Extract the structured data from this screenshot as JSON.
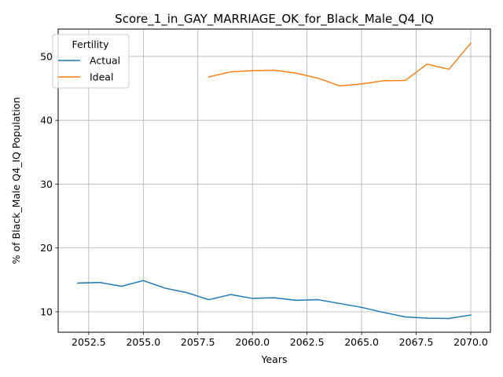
{
  "chart_data": {
    "type": "line",
    "title": "Score_1_in_GAY_MARRIAGE_OK_for_Black_Male_Q4_IQ",
    "xlabel": "Years",
    "ylabel": "% of Black_Male Q4_IQ Population",
    "xlim": [
      2051.1,
      2070.9
    ],
    "ylim": [
      6.8,
      54.3
    ],
    "x_ticks": [
      2052.5,
      2055.0,
      2057.5,
      2060.0,
      2062.5,
      2065.0,
      2067.5,
      2070.0
    ],
    "x_tick_labels": [
      "2052.5",
      "2055.0",
      "2057.5",
      "2060.0",
      "2062.5",
      "2065.0",
      "2067.5",
      "2070.0"
    ],
    "y_ticks": [
      10,
      20,
      30,
      40,
      50
    ],
    "y_tick_labels": [
      "10",
      "20",
      "30",
      "40",
      "50"
    ],
    "grid": true,
    "legend": {
      "title": "Fertility",
      "placement": "top-left"
    },
    "series": [
      {
        "name": "Actual",
        "color": "#1f77b4",
        "x": [
          2052,
          2053,
          2054,
          2055,
          2056,
          2057,
          2058,
          2059,
          2060,
          2061,
          2062,
          2063,
          2064,
          2065,
          2066,
          2067,
          2068,
          2069,
          2070
        ],
        "y": [
          14.5,
          14.6,
          14.0,
          14.9,
          13.7,
          13.0,
          11.9,
          12.7,
          12.1,
          12.2,
          11.8,
          11.9,
          11.3,
          10.7,
          9.9,
          9.2,
          9.0,
          8.95,
          9.5
        ]
      },
      {
        "name": "Ideal",
        "color": "#ff7f0e",
        "x": [
          2058,
          2059,
          2060,
          2061,
          2062,
          2063,
          2064,
          2065,
          2066,
          2067,
          2068,
          2069,
          2070
        ],
        "y": [
          46.8,
          47.6,
          47.8,
          47.85,
          47.4,
          46.6,
          45.4,
          45.7,
          46.2,
          46.25,
          48.8,
          48.0,
          52.1
        ]
      }
    ]
  }
}
